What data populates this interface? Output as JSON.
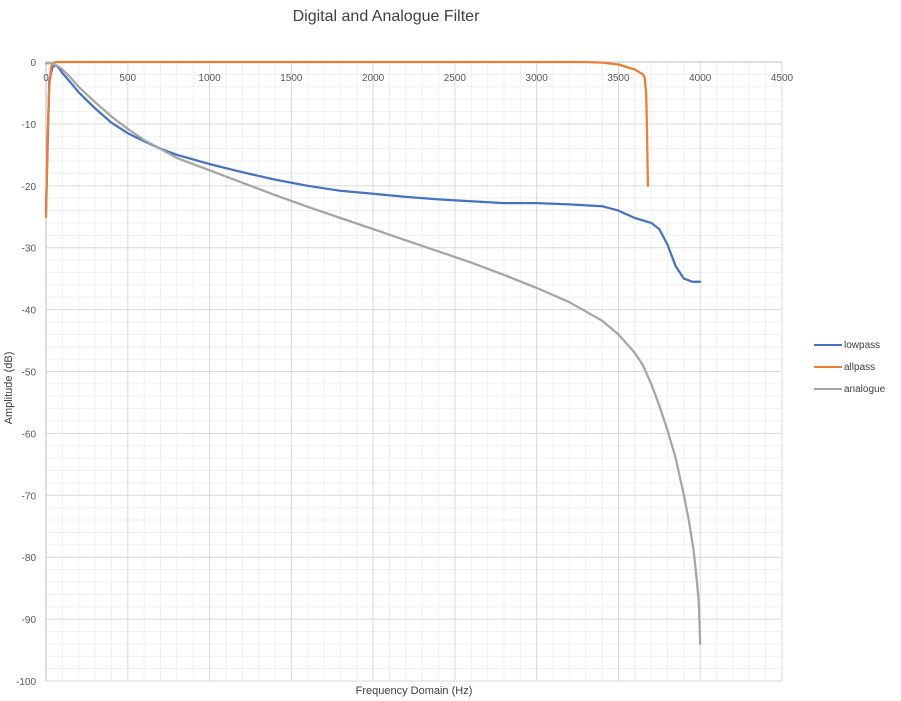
{
  "chart_data": {
    "type": "line",
    "title": "Digital and Analogue Filter",
    "xlabel": "Frequency Domain (Hz)",
    "ylabel": "Amplitude (dB)",
    "xlim": [
      0,
      4500
    ],
    "ylim": [
      -100,
      0
    ],
    "xticks": [
      "0",
      "500",
      "1000",
      "1500",
      "2000",
      "2500",
      "3000",
      "3500",
      "4000",
      "4500"
    ],
    "yticks": [
      "0",
      "-10",
      "-20",
      "-30",
      "-40",
      "-50",
      "-60",
      "-70",
      "-80",
      "-90",
      "-100"
    ],
    "grid": true,
    "legend_position": "right",
    "series": [
      {
        "name": "lowpass",
        "color": "#4472C4",
        "x": [
          0,
          20,
          40,
          60,
          80,
          100,
          150,
          200,
          300,
          400,
          500,
          600,
          700,
          800,
          1000,
          1200,
          1400,
          1600,
          1800,
          2000,
          2200,
          2400,
          2600,
          2800,
          3000,
          3200,
          3400,
          3500,
          3600,
          3700,
          3750,
          3800,
          3850,
          3900,
          3950,
          4000
        ],
        "y": [
          -24,
          -3,
          -0.8,
          -0.5,
          -1,
          -1.8,
          -3.3,
          -4.9,
          -7.5,
          -9.8,
          -11.5,
          -12.8,
          -14,
          -15,
          -16.5,
          -17.8,
          -19,
          -20,
          -20.8,
          -21.3,
          -21.8,
          -22.2,
          -22.5,
          -22.8,
          -22.8,
          -23,
          -23.3,
          -24,
          -25.2,
          -26,
          -27,
          -29.5,
          -33,
          -35,
          -35.5,
          -35.5
        ]
      },
      {
        "name": "allpass",
        "color": "#ED7D31",
        "x": [
          0,
          10,
          20,
          30,
          40,
          60,
          100,
          500,
          1000,
          2000,
          3000,
          3300,
          3400,
          3500,
          3550,
          3600,
          3650,
          3660,
          3670,
          3675,
          3680
        ],
        "y": [
          -25,
          -12,
          -4,
          -1,
          -0.3,
          0,
          0,
          0,
          0,
          0,
          0,
          0,
          -0.1,
          -0.4,
          -0.8,
          -1.2,
          -2,
          -2.5,
          -5,
          -12,
          -20
        ]
      },
      {
        "name": "analogue",
        "color": "#A5A5A5",
        "x": [
          0,
          20,
          40,
          60,
          80,
          100,
          150,
          200,
          300,
          400,
          500,
          600,
          800,
          1000,
          1200,
          1400,
          1600,
          1800,
          2000,
          2200,
          2400,
          2600,
          2800,
          3000,
          3200,
          3400,
          3500,
          3600,
          3650,
          3700,
          3750,
          3800,
          3850,
          3900,
          3930,
          3960,
          3980,
          3990,
          3995,
          4000
        ],
        "y": [
          -0.2,
          -0.2,
          -0.3,
          -0.5,
          -0.8,
          -1.2,
          -2.5,
          -4,
          -6.5,
          -8.8,
          -10.8,
          -12.6,
          -15.5,
          -17.5,
          -19.5,
          -21.5,
          -23.4,
          -25.2,
          -27,
          -28.8,
          -30.6,
          -32.4,
          -34.4,
          -36.5,
          -38.8,
          -41.8,
          -44,
          -47,
          -49,
          -52,
          -55.5,
          -59.5,
          -64,
          -70,
          -74,
          -79,
          -84,
          -87,
          -90,
          -94
        ]
      }
    ]
  }
}
